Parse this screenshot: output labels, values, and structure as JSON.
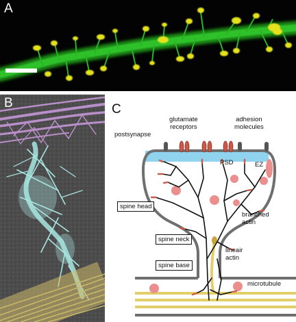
{
  "panels": {
    "a": {
      "letter": "A"
    },
    "b": {
      "letter": "B"
    },
    "c": {
      "letter": "C"
    }
  },
  "colors": {
    "dendrite_green": "#22b41e",
    "spine_yellow": "#e4e21e",
    "actin_cyan": "#a8e6e2",
    "filament_purple": "#b88fc8",
    "microtubule_tan": "#cdb96a",
    "membrane_gray": "#6f6f6f",
    "psd_blue": "#8fd3ee",
    "receptor_red": "#c75a48",
    "vesicle_pink": "#ea8e8e",
    "track_yellow": "#e3cf6a"
  },
  "diagram": {
    "labels": {
      "postsynapse": "postsynapse",
      "glutamate_receptors": "glutamate\nreceptors",
      "adhesion_molecules": "adhesion\nmolecules",
      "psd": "PSD",
      "ez": "EZ",
      "branched_actin": "branched\nactin",
      "lineair_actin": "lineair\nactin",
      "microtubule": "microtubule"
    },
    "boxed_labels": {
      "spine_head": "spine head",
      "spine_neck": "spine neck",
      "spine_base": "spine base"
    }
  }
}
